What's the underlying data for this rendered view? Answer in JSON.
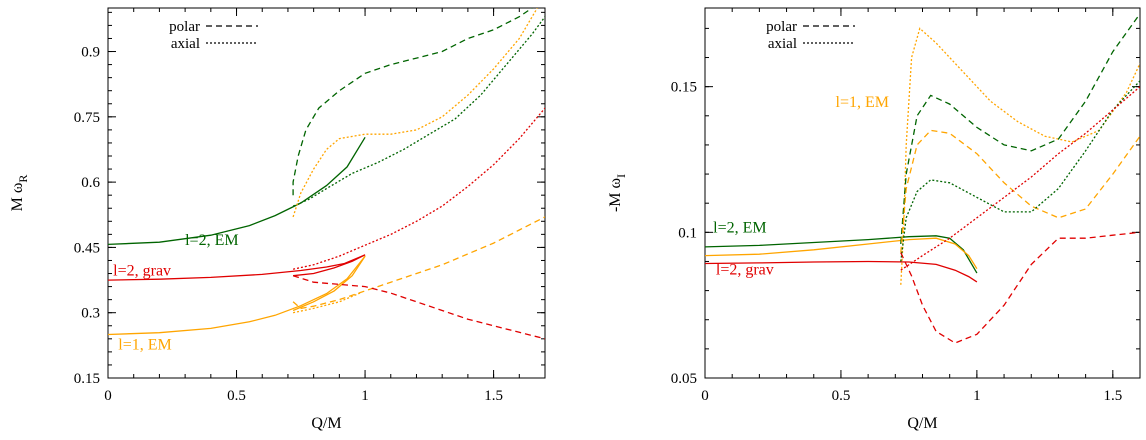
{
  "colors": {
    "green": "#006400",
    "red": "#e00000",
    "orange": "#ffa500",
    "black": "#000000"
  },
  "line_styles": {
    "solid": "",
    "dashed": "6,4",
    "dotted": "2,2"
  },
  "chart_data": [
    {
      "type": "line",
      "title": "",
      "xlabel": "Q/M",
      "ylabel_main": "M ω",
      "ylabel_sub": "R",
      "xlim": [
        0,
        1.7
      ],
      "ylim": [
        0.15,
        1.0
      ],
      "xticks": [
        0,
        0.5,
        1,
        1.5
      ],
      "xtick_labels": [
        "0",
        "0.5",
        "1",
        "1.5"
      ],
      "yticks": [
        0.15,
        0.3,
        0.45,
        0.6,
        0.75,
        0.9
      ],
      "ytick_labels": [
        "0.15",
        "0.3",
        "0.45",
        "0.6",
        "0.75",
        "0.9"
      ],
      "grid": false,
      "legend_position": "top-left",
      "legend": [
        {
          "label": "polar",
          "style": "dashed",
          "color": "black"
        },
        {
          "label": "axial",
          "style": "dotted",
          "color": "black"
        }
      ],
      "labels": [
        {
          "text": "l=2, EM",
          "x": 0.3,
          "y": 0.455,
          "color": "green"
        },
        {
          "text": "l=2, grav",
          "x": 0.02,
          "y": 0.385,
          "color": "red"
        },
        {
          "text": "l=1, EM",
          "x": 0.04,
          "y": 0.215,
          "color": "orange"
        }
      ],
      "series": [
        {
          "color": "green",
          "style": "solid",
          "points": [
            [
              0,
              0.457
            ],
            [
              0.2,
              0.462
            ],
            [
              0.4,
              0.478
            ],
            [
              0.55,
              0.5
            ],
            [
              0.65,
              0.523
            ],
            [
              0.75,
              0.552
            ],
            [
              0.85,
              0.592
            ],
            [
              0.93,
              0.635
            ],
            [
              1.0,
              0.703
            ]
          ]
        },
        {
          "color": "red",
          "style": "solid",
          "points": [
            [
              0,
              0.375
            ],
            [
              0.2,
              0.377
            ],
            [
              0.4,
              0.381
            ],
            [
              0.6,
              0.388
            ],
            [
              0.75,
              0.397
            ],
            [
              0.85,
              0.405
            ],
            [
              0.92,
              0.413
            ],
            [
              1.0,
              0.433
            ]
          ]
        },
        {
          "color": "red",
          "style": "solid",
          "points": [
            [
              0.72,
              0.385
            ],
            [
              0.8,
              0.39
            ],
            [
              0.88,
              0.403
            ],
            [
              0.95,
              0.418
            ],
            [
              1.0,
              0.433
            ]
          ]
        },
        {
          "color": "orange",
          "style": "solid",
          "points": [
            [
              0,
              0.25
            ],
            [
              0.2,
              0.254
            ],
            [
              0.4,
              0.264
            ],
            [
              0.55,
              0.279
            ],
            [
              0.65,
              0.294
            ],
            [
              0.75,
              0.316
            ],
            [
              0.85,
              0.344
            ],
            [
              0.93,
              0.378
            ],
            [
              1.0,
              0.43
            ]
          ]
        },
        {
          "color": "orange",
          "style": "solid",
          "points": [
            [
              0.72,
              0.305
            ],
            [
              0.8,
              0.325
            ],
            [
              0.88,
              0.35
            ],
            [
              0.95,
              0.385
            ],
            [
              1.0,
              0.43
            ]
          ]
        },
        {
          "color": "green",
          "style": "dashed",
          "points": [
            [
              0.72,
              0.57
            ],
            [
              0.72,
              0.6
            ],
            [
              0.74,
              0.66
            ],
            [
              0.77,
              0.72
            ],
            [
              0.82,
              0.77
            ],
            [
              0.9,
              0.81
            ],
            [
              1.0,
              0.85
            ],
            [
              1.1,
              0.87
            ],
            [
              1.2,
              0.885
            ],
            [
              1.3,
              0.9
            ],
            [
              1.4,
              0.93
            ],
            [
              1.5,
              0.95
            ],
            [
              1.6,
              0.98
            ],
            [
              1.65,
              1.0
            ]
          ]
        },
        {
          "color": "green",
          "style": "dotted",
          "points": [
            [
              0.72,
              0.545
            ],
            [
              0.78,
              0.56
            ],
            [
              0.85,
              0.585
            ],
            [
              0.95,
              0.62
            ],
            [
              1.05,
              0.645
            ],
            [
              1.15,
              0.675
            ],
            [
              1.25,
              0.71
            ],
            [
              1.35,
              0.745
            ],
            [
              1.45,
              0.8
            ],
            [
              1.55,
              0.87
            ],
            [
              1.65,
              0.94
            ],
            [
              1.7,
              0.98
            ]
          ]
        },
        {
          "color": "orange",
          "style": "dotted",
          "points": [
            [
              0.72,
              0.52
            ],
            [
              0.75,
              0.575
            ],
            [
              0.8,
              0.63
            ],
            [
              0.85,
              0.675
            ],
            [
              0.9,
              0.7
            ],
            [
              1.0,
              0.71
            ],
            [
              1.1,
              0.71
            ],
            [
              1.2,
              0.72
            ],
            [
              1.3,
              0.75
            ],
            [
              1.4,
              0.8
            ],
            [
              1.5,
              0.86
            ],
            [
              1.6,
              0.93
            ],
            [
              1.67,
              1.0
            ]
          ]
        },
        {
          "color": "red",
          "style": "dotted",
          "points": [
            [
              0.72,
              0.4
            ],
            [
              0.8,
              0.41
            ],
            [
              0.9,
              0.43
            ],
            [
              1.0,
              0.455
            ],
            [
              1.1,
              0.48
            ],
            [
              1.2,
              0.51
            ],
            [
              1.3,
              0.545
            ],
            [
              1.4,
              0.59
            ],
            [
              1.5,
              0.64
            ],
            [
              1.6,
              0.7
            ],
            [
              1.7,
              0.77
            ]
          ]
        },
        {
          "color": "orange",
          "style": "dotted",
          "points": [
            [
              0.72,
              0.3
            ],
            [
              0.8,
              0.31
            ],
            [
              0.9,
              0.325
            ],
            [
              0.98,
              0.345
            ]
          ]
        },
        {
          "color": "orange",
          "style": "dashed",
          "points": [
            [
              0.72,
              0.325
            ],
            [
              0.75,
              0.31
            ],
            [
              0.8,
              0.315
            ],
            [
              0.9,
              0.33
            ],
            [
              1.0,
              0.35
            ],
            [
              1.1,
              0.37
            ],
            [
              1.2,
              0.39
            ],
            [
              1.3,
              0.41
            ],
            [
              1.4,
              0.435
            ],
            [
              1.5,
              0.46
            ],
            [
              1.6,
              0.49
            ],
            [
              1.7,
              0.52
            ]
          ]
        },
        {
          "color": "red",
          "style": "dashed",
          "points": [
            [
              0.72,
              0.385
            ],
            [
              0.8,
              0.37
            ],
            [
              0.9,
              0.365
            ],
            [
              1.0,
              0.36
            ],
            [
              1.1,
              0.345
            ],
            [
              1.2,
              0.325
            ],
            [
              1.3,
              0.305
            ],
            [
              1.4,
              0.285
            ],
            [
              1.5,
              0.27
            ],
            [
              1.6,
              0.255
            ],
            [
              1.7,
              0.24
            ]
          ]
        }
      ]
    },
    {
      "type": "line",
      "title": "",
      "xlabel": "Q/M",
      "ylabel_main": "-M ω",
      "ylabel_sub": "I",
      "xlim": [
        0,
        1.6
      ],
      "ylim": [
        0.05,
        0.177
      ],
      "xticks": [
        0,
        0.5,
        1,
        1.5
      ],
      "xtick_labels": [
        "0",
        "0.5",
        "1",
        "1.5"
      ],
      "yticks": [
        0.05,
        0.1,
        0.15
      ],
      "ytick_labels": [
        "0.05",
        "0.1",
        "0.15"
      ],
      "grid": false,
      "legend_position": "top-left",
      "legend": [
        {
          "label": "polar",
          "style": "dashed",
          "color": "black"
        },
        {
          "label": "axial",
          "style": "dotted",
          "color": "black"
        }
      ],
      "labels": [
        {
          "text": "l=1, EM",
          "x": 0.48,
          "y": 0.143,
          "color": "orange"
        },
        {
          "text": "l=2, EM",
          "x": 0.03,
          "y": 0.1,
          "color": "green"
        },
        {
          "text": "l=2, grav",
          "x": 0.04,
          "y": 0.0855,
          "color": "red"
        }
      ],
      "series": [
        {
          "color": "green",
          "style": "solid",
          "points": [
            [
              0,
              0.095
            ],
            [
              0.2,
              0.0955
            ],
            [
              0.4,
              0.0965
            ],
            [
              0.6,
              0.0975
            ],
            [
              0.75,
              0.0985
            ],
            [
              0.85,
              0.0988
            ],
            [
              0.9,
              0.098
            ],
            [
              0.95,
              0.094
            ],
            [
              1.0,
              0.086
            ]
          ]
        },
        {
          "color": "orange",
          "style": "solid",
          "points": [
            [
              0,
              0.092
            ],
            [
              0.2,
              0.0925
            ],
            [
              0.4,
              0.094
            ],
            [
              0.6,
              0.096
            ],
            [
              0.75,
              0.0975
            ],
            [
              0.85,
              0.098
            ],
            [
              0.92,
              0.096
            ],
            [
              0.97,
              0.092
            ],
            [
              1.0,
              0.0875
            ]
          ]
        },
        {
          "color": "red",
          "style": "solid",
          "points": [
            [
              0,
              0.0893
            ],
            [
              0.2,
              0.0895
            ],
            [
              0.4,
              0.0898
            ],
            [
              0.6,
              0.09
            ],
            [
              0.75,
              0.0898
            ],
            [
              0.85,
              0.089
            ],
            [
              0.92,
              0.087
            ],
            [
              0.97,
              0.0848
            ],
            [
              1.0,
              0.083
            ]
          ]
        },
        {
          "color": "orange",
          "style": "dotted",
          "points": [
            [
              0.72,
              0.082
            ],
            [
              0.73,
              0.1
            ],
            [
              0.74,
              0.13
            ],
            [
              0.76,
              0.16
            ],
            [
              0.79,
              0.17
            ],
            [
              0.85,
              0.165
            ],
            [
              0.95,
              0.155
            ],
            [
              1.05,
              0.145
            ],
            [
              1.15,
              0.138
            ],
            [
              1.25,
              0.133
            ],
            [
              1.35,
              0.131
            ],
            [
              1.45,
              0.135
            ],
            [
              1.55,
              0.148
            ],
            [
              1.6,
              0.158
            ]
          ]
        },
        {
          "color": "green",
          "style": "dashed",
          "points": [
            [
              0.72,
              0.096
            ],
            [
              0.74,
              0.12
            ],
            [
              0.78,
              0.14
            ],
            [
              0.83,
              0.147
            ],
            [
              0.9,
              0.144
            ],
            [
              1.0,
              0.136
            ],
            [
              1.1,
              0.13
            ],
            [
              1.2,
              0.128
            ],
            [
              1.3,
              0.132
            ],
            [
              1.4,
              0.145
            ],
            [
              1.5,
              0.162
            ],
            [
              1.6,
              0.175
            ]
          ]
        },
        {
          "color": "orange",
          "style": "dashed",
          "points": [
            [
              0.72,
              0.093
            ],
            [
              0.74,
              0.115
            ],
            [
              0.78,
              0.13
            ],
            [
              0.83,
              0.135
            ],
            [
              0.9,
              0.134
            ],
            [
              1.0,
              0.127
            ],
            [
              1.1,
              0.117
            ],
            [
              1.2,
              0.109
            ],
            [
              1.3,
              0.105
            ],
            [
              1.4,
              0.108
            ],
            [
              1.5,
              0.12
            ],
            [
              1.6,
              0.133
            ]
          ]
        },
        {
          "color": "green",
          "style": "dotted",
          "points": [
            [
              0.72,
              0.09
            ],
            [
              0.74,
              0.105
            ],
            [
              0.78,
              0.114
            ],
            [
              0.83,
              0.118
            ],
            [
              0.9,
              0.117
            ],
            [
              1.0,
              0.112
            ],
            [
              1.1,
              0.107
            ],
            [
              1.2,
              0.107
            ],
            [
              1.3,
              0.115
            ],
            [
              1.4,
              0.128
            ],
            [
              1.5,
              0.142
            ],
            [
              1.6,
              0.152
            ]
          ]
        },
        {
          "color": "red",
          "style": "dotted",
          "points": [
            [
              0.72,
              0.087
            ],
            [
              0.8,
              0.092
            ],
            [
              0.9,
              0.098
            ],
            [
              1.0,
              0.105
            ],
            [
              1.1,
              0.112
            ],
            [
              1.2,
              0.119
            ],
            [
              1.3,
              0.127
            ],
            [
              1.4,
              0.134
            ],
            [
              1.5,
              0.142
            ],
            [
              1.6,
              0.15
            ]
          ]
        },
        {
          "color": "red",
          "style": "dashed",
          "points": [
            [
              0.72,
              0.093
            ],
            [
              0.76,
              0.085
            ],
            [
              0.8,
              0.075
            ],
            [
              0.85,
              0.066
            ],
            [
              0.92,
              0.062
            ],
            [
              1.0,
              0.065
            ],
            [
              1.1,
              0.075
            ],
            [
              1.2,
              0.089
            ],
            [
              1.3,
              0.098
            ],
            [
              1.4,
              0.098
            ],
            [
              1.5,
              0.099
            ],
            [
              1.6,
              0.1
            ]
          ]
        }
      ]
    }
  ]
}
